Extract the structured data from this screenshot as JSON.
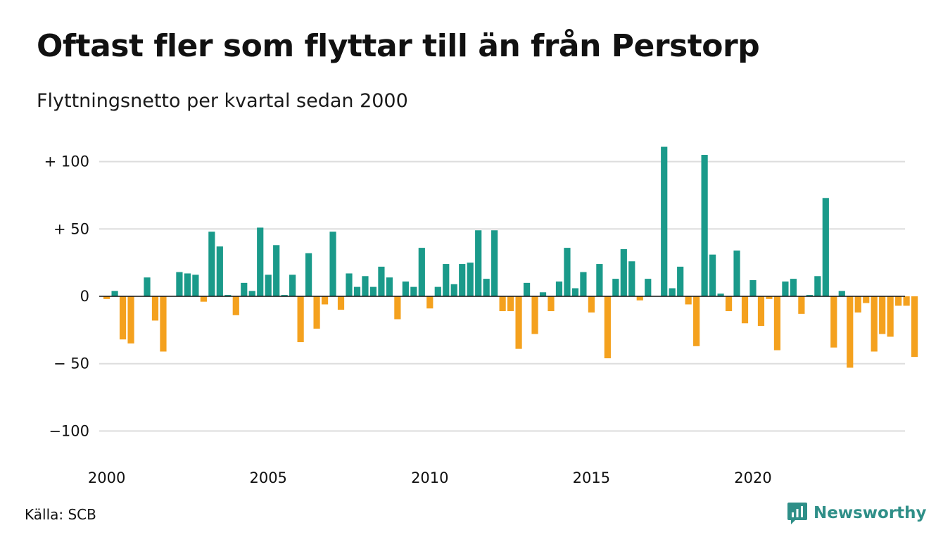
{
  "title": "Oftast fler som flyttar till än från Perstorp",
  "subtitle": "Flyttningsnetto per kvartal sedan 2000",
  "source": "Källa: SCB",
  "brand": "Newsworthy",
  "colors": {
    "positive": "#1a9a8a",
    "negative": "#f4a11e",
    "grid": "#dddddd",
    "brand": "#2f8f88"
  },
  "chart_data": {
    "type": "bar",
    "x_start": "2000 Q1",
    "frequency": "quarterly",
    "x_ticks": [
      "2000",
      "2005",
      "2010",
      "2015",
      "2020"
    ],
    "y_ticks": [
      "+ 100",
      "+  50",
      "0",
      "− 50",
      "−100"
    ],
    "y_tick_values": [
      100,
      50,
      0,
      -50,
      -100
    ],
    "ylim": [
      -110,
      112
    ],
    "grid": true,
    "values": [
      -2,
      4,
      -32,
      -35,
      0,
      14,
      -18,
      -41,
      0,
      18,
      17,
      16,
      -4,
      48,
      37,
      1,
      -14,
      10,
      4,
      51,
      16,
      38,
      1,
      16,
      -34,
      32,
      -24,
      -6,
      48,
      -10,
      17,
      7,
      15,
      7,
      22,
      14,
      -17,
      11,
      7,
      36,
      -9,
      7,
      24,
      9,
      24,
      25,
      49,
      13,
      49,
      -11,
      -11,
      -39,
      10,
      -28,
      3,
      -11,
      11,
      36,
      6,
      18,
      -12,
      24,
      -46,
      13,
      35,
      26,
      -3,
      13,
      0,
      111,
      6,
      22,
      -6,
      -37,
      105,
      31,
      2,
      -11,
      34,
      -20,
      12,
      -22,
      -2,
      -40,
      11,
      13,
      -13,
      1,
      15,
      73,
      -38,
      4,
      -53,
      -12,
      -5,
      -41,
      -28,
      -30,
      -7,
      -7,
      -45
    ]
  }
}
